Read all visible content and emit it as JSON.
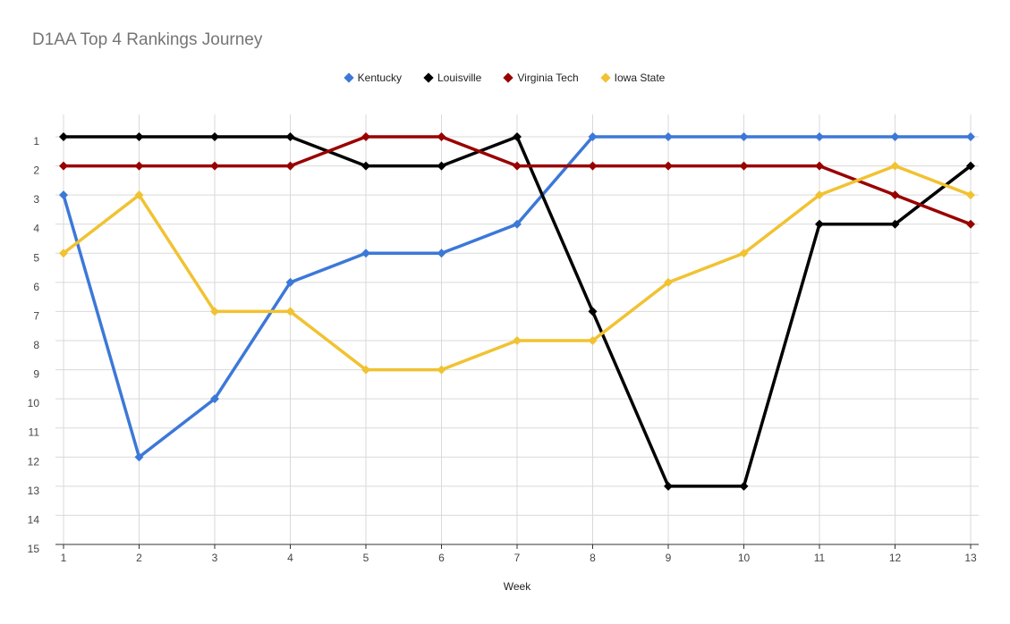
{
  "chart_data": {
    "type": "line",
    "title": "D1AA Top 4 Rankings Journey",
    "xlabel": "Week",
    "ylabel": "",
    "x": [
      1,
      2,
      3,
      4,
      5,
      6,
      7,
      8,
      9,
      10,
      11,
      12,
      13
    ],
    "xlim": [
      1,
      13
    ],
    "ylim": [
      1,
      15
    ],
    "y_reversed": true,
    "y_ticks": [
      1,
      2,
      3,
      4,
      5,
      6,
      7,
      8,
      9,
      10,
      11,
      12,
      13,
      14,
      15
    ],
    "grid": true,
    "legend_position": "top",
    "series": [
      {
        "name": "Kentucky",
        "color": "#3c78d8",
        "values": [
          3,
          12,
          10,
          6,
          5,
          5,
          4,
          1,
          1,
          1,
          1,
          1,
          1
        ]
      },
      {
        "name": "Louisville",
        "color": "#000000",
        "values": [
          1,
          1,
          1,
          1,
          2,
          2,
          1,
          7,
          13,
          13,
          4,
          4,
          2
        ]
      },
      {
        "name": "Virginia Tech",
        "color": "#990000",
        "values": [
          2,
          2,
          2,
          2,
          1,
          1,
          2,
          2,
          2,
          2,
          2,
          3,
          4
        ]
      },
      {
        "name": "Iowa State",
        "color": "#f1c232",
        "values": [
          5,
          3,
          7,
          7,
          9,
          9,
          8,
          8,
          6,
          5,
          3,
          2,
          3
        ]
      }
    ]
  }
}
